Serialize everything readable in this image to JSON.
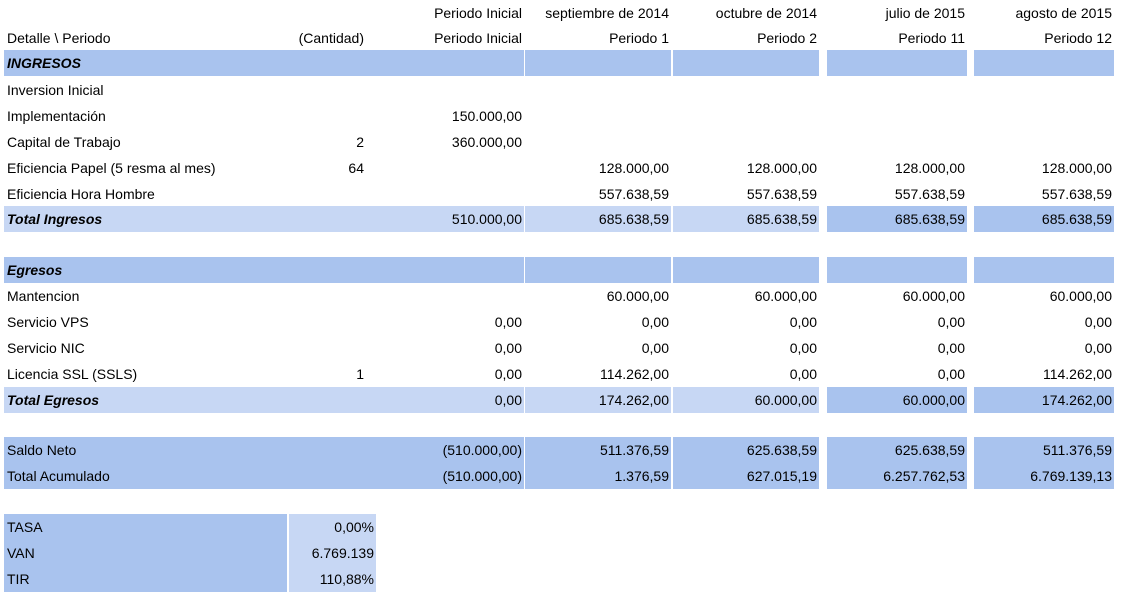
{
  "header": {
    "periods_top": [
      "Periodo Inicial",
      "septiembre de 2014",
      "octubre de 2014",
      "julio de 2015",
      "agosto de 2015"
    ],
    "detail_label": "Detalle \\ Periodo",
    "quantity_label": "(Cantidad)",
    "periods_bottom": [
      "Periodo Inicial",
      "Periodo 1",
      "Periodo 2",
      "Periodo 11",
      "Periodo 12"
    ]
  },
  "ingresos": {
    "title": "INGRESOS",
    "rows": [
      {
        "label": "Inversion Inicial",
        "qty": "",
        "values": [
          "",
          "",
          "",
          "",
          ""
        ]
      },
      {
        "label": "Implementación",
        "qty": "",
        "values": [
          "150.000,00",
          "",
          "",
          "",
          ""
        ]
      },
      {
        "label": "Capital de Trabajo",
        "qty": "2",
        "values": [
          "360.000,00",
          "",
          "",
          "",
          ""
        ]
      },
      {
        "label": "Eficiencia Papel (5 resma al mes)",
        "qty": "64",
        "values": [
          "",
          "128.000,00",
          "128.000,00",
          "128.000,00",
          "128.000,00"
        ]
      },
      {
        "label": "Eficiencia Hora Hombre",
        "qty": "",
        "values": [
          "",
          "557.638,59",
          "557.638,59",
          "557.638,59",
          "557.638,59"
        ]
      }
    ],
    "total": {
      "label": "Total Ingresos",
      "values": [
        "510.000,00",
        "685.638,59",
        "685.638,59",
        "685.638,59",
        "685.638,59"
      ]
    }
  },
  "egresos": {
    "title": "Egresos",
    "rows": [
      {
        "label": "Mantencion",
        "qty": "",
        "values": [
          "",
          "60.000,00",
          "60.000,00",
          "60.000,00",
          "60.000,00"
        ]
      },
      {
        "label": "Servicio VPS",
        "qty": "",
        "values": [
          "0,00",
          "0,00",
          "0,00",
          "0,00",
          "0,00"
        ]
      },
      {
        "label": "Servicio NIC",
        "qty": "",
        "values": [
          "0,00",
          "0,00",
          "0,00",
          "0,00",
          "0,00"
        ]
      },
      {
        "label": "Licencia SSL (SSLS)",
        "qty": "1",
        "values": [
          "0,00",
          "114.262,00",
          "0,00",
          "0,00",
          "114.262,00"
        ]
      }
    ],
    "total": {
      "label": "Total Egresos",
      "values": [
        "0,00",
        "174.262,00",
        "60.000,00",
        "60.000,00",
        "174.262,00"
      ]
    }
  },
  "saldo": {
    "neto": {
      "label": "Saldo Neto",
      "values": [
        "(510.000,00)",
        "511.376,59",
        "625.638,59",
        "625.638,59",
        "511.376,59"
      ]
    },
    "acumulado": {
      "label": "Total Acumulado",
      "values": [
        "(510.000,00)",
        "1.376,59",
        "627.015,19",
        "6.257.762,53",
        "6.769.139,13"
      ]
    }
  },
  "indicadores": [
    {
      "label": "TASA",
      "value": "0,00%"
    },
    {
      "label": "VAN",
      "value": "6.769.139"
    },
    {
      "label": "TIR",
      "value": "110,88%"
    }
  ]
}
